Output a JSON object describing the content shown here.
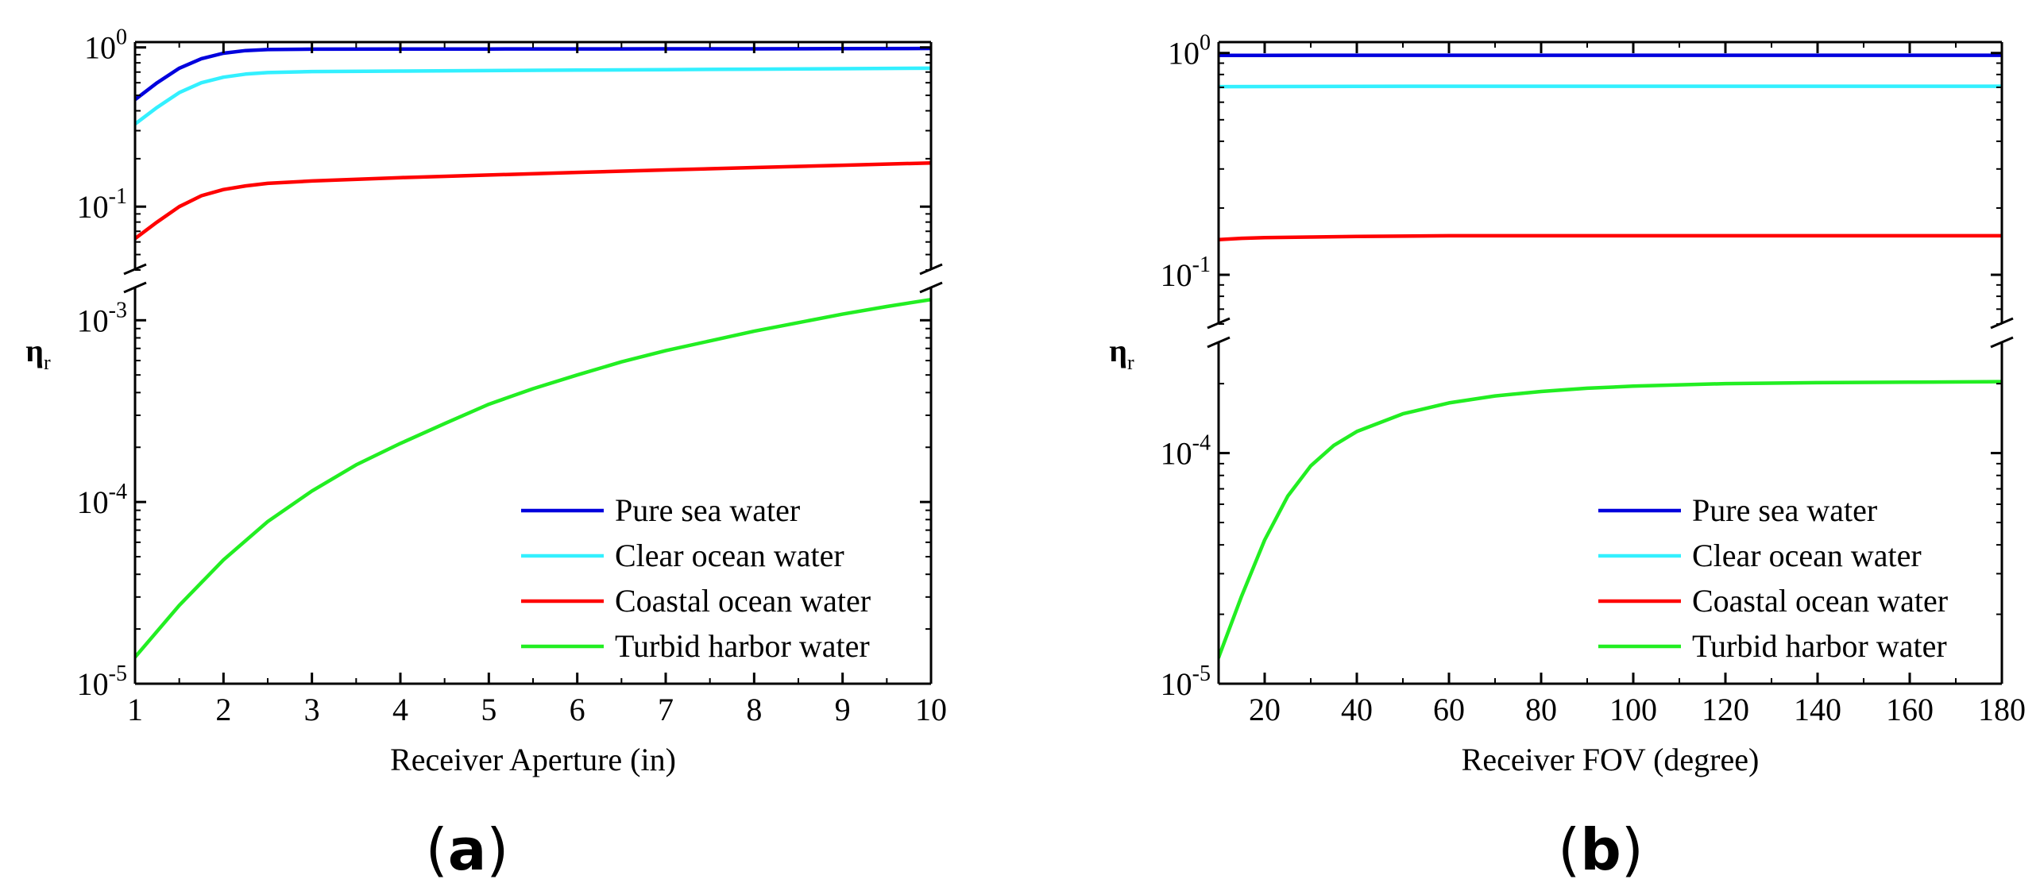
{
  "chart_data": [
    {
      "type": "line",
      "panel_label": "(a)",
      "xlabel": "Receiver Aperture (in)",
      "ylabel": "η",
      "ylabel_sub": "r",
      "yscale": "log-broken",
      "xlim": [
        1,
        10
      ],
      "xticks": [
        "1",
        "2",
        "3",
        "4",
        "5",
        "6",
        "7",
        "8",
        "9",
        "10"
      ],
      "upper_ylim": [
        0.04,
        1.0
      ],
      "lower_ylim": [
        1e-05,
        0.0015
      ],
      "upper_yticks": [
        {
          "base": "10",
          "exp": "0",
          "value": 1.0
        },
        {
          "base": "10",
          "exp": "-1",
          "value": 0.1
        }
      ],
      "lower_yticks": [
        {
          "base": "10",
          "exp": "-3",
          "value": 0.001
        },
        {
          "base": "10",
          "exp": "-4",
          "value": 0.0001
        },
        {
          "base": "10",
          "exp": "-5",
          "value": 1e-05
        }
      ],
      "legend_position": "bottom-right",
      "series": [
        {
          "name": "Pure sea water",
          "color": "#0000dd",
          "segment": "upper",
          "x": [
            1,
            1.25,
            1.5,
            1.75,
            2,
            2.25,
            2.5,
            3,
            4,
            5,
            6,
            7,
            8,
            9,
            10
          ],
          "y": [
            0.47,
            0.6,
            0.74,
            0.85,
            0.92,
            0.955,
            0.97,
            0.975,
            0.976,
            0.977,
            0.978,
            0.979,
            0.98,
            0.982,
            0.985
          ]
        },
        {
          "name": "Clear ocean water",
          "color": "#33f0ff",
          "segment": "upper",
          "x": [
            1,
            1.25,
            1.5,
            1.75,
            2,
            2.25,
            2.5,
            3,
            4,
            5,
            6,
            7,
            8,
            9,
            10
          ],
          "y": [
            0.33,
            0.42,
            0.52,
            0.6,
            0.65,
            0.68,
            0.695,
            0.705,
            0.71,
            0.715,
            0.72,
            0.725,
            0.73,
            0.735,
            0.74
          ]
        },
        {
          "name": "Coastal ocean water",
          "color": "#ff0000",
          "segment": "upper",
          "x": [
            1,
            1.25,
            1.5,
            1.75,
            2,
            2.25,
            2.5,
            3,
            4,
            5,
            6,
            7,
            8,
            9,
            10
          ],
          "y": [
            0.063,
            0.08,
            0.1,
            0.117,
            0.128,
            0.135,
            0.14,
            0.145,
            0.152,
            0.158,
            0.164,
            0.17,
            0.176,
            0.182,
            0.188
          ]
        },
        {
          "name": "Turbid harbor water",
          "color": "#22ee22",
          "segment": "lower",
          "x": [
            1,
            1.5,
            2,
            2.5,
            3,
            3.5,
            4,
            4.5,
            5,
            5.5,
            6,
            6.5,
            7,
            7.5,
            8,
            8.5,
            9,
            9.5,
            10
          ],
          "y": [
            1.4e-05,
            2.7e-05,
            4.8e-05,
            7.8e-05,
            0.000115,
            0.00016,
            0.00021,
            0.00027,
            0.000345,
            0.00042,
            0.0005,
            0.00059,
            0.00068,
            0.00077,
            0.00087,
            0.00097,
            0.00108,
            0.00119,
            0.0013
          ]
        }
      ]
    },
    {
      "type": "line",
      "panel_label": "(b)",
      "xlabel": "Receiver FOV (degree)",
      "ylabel": "η",
      "ylabel_sub": "r",
      "yscale": "log-broken",
      "xlim": [
        10,
        180
      ],
      "xticks": [
        "20",
        "40",
        "60",
        "80",
        "100",
        "120",
        "140",
        "160",
        "180"
      ],
      "upper_ylim": [
        0.06,
        1.0
      ],
      "lower_ylim": [
        1e-05,
        0.0003
      ],
      "upper_yticks": [
        {
          "base": "10",
          "exp": "0",
          "value": 1.0
        },
        {
          "base": "10",
          "exp": "-1",
          "value": 0.1
        }
      ],
      "lower_yticks": [
        {
          "base": "10",
          "exp": "-4",
          "value": 0.0001
        },
        {
          "base": "10",
          "exp": "-5",
          "value": 1e-05
        }
      ],
      "legend_position": "bottom-right",
      "series": [
        {
          "name": "Pure sea water",
          "color": "#0000dd",
          "segment": "upper",
          "x": [
            10,
            20,
            40,
            60,
            80,
            100,
            120,
            140,
            160,
            180
          ],
          "y": [
            0.975,
            0.976,
            0.977,
            0.977,
            0.977,
            0.977,
            0.977,
            0.977,
            0.977,
            0.977
          ]
        },
        {
          "name": "Clear ocean water",
          "color": "#33f0ff",
          "segment": "upper",
          "x": [
            10,
            20,
            40,
            60,
            80,
            100,
            120,
            140,
            160,
            180
          ],
          "y": [
            0.705,
            0.706,
            0.707,
            0.708,
            0.708,
            0.708,
            0.708,
            0.708,
            0.708,
            0.708
          ]
        },
        {
          "name": "Coastal ocean water",
          "color": "#ff0000",
          "segment": "upper",
          "x": [
            10,
            15,
            20,
            30,
            40,
            60,
            80,
            100,
            120,
            140,
            160,
            180
          ],
          "y": [
            0.144,
            0.146,
            0.147,
            0.148,
            0.149,
            0.15,
            0.15,
            0.15,
            0.15,
            0.15,
            0.15,
            0.15
          ]
        },
        {
          "name": "Turbid harbor water",
          "color": "#22ee22",
          "segment": "lower",
          "x": [
            10,
            15,
            20,
            25,
            30,
            35,
            40,
            50,
            60,
            70,
            80,
            90,
            100,
            120,
            140,
            160,
            180
          ],
          "y": [
            1.3e-05,
            2.4e-05,
            4.2e-05,
            6.5e-05,
            8.8e-05,
            0.000108,
            0.000124,
            0.000148,
            0.000165,
            0.000177,
            0.000185,
            0.000191,
            0.000195,
            0.0002,
            0.000202,
            0.000203,
            0.000204
          ]
        }
      ]
    }
  ]
}
